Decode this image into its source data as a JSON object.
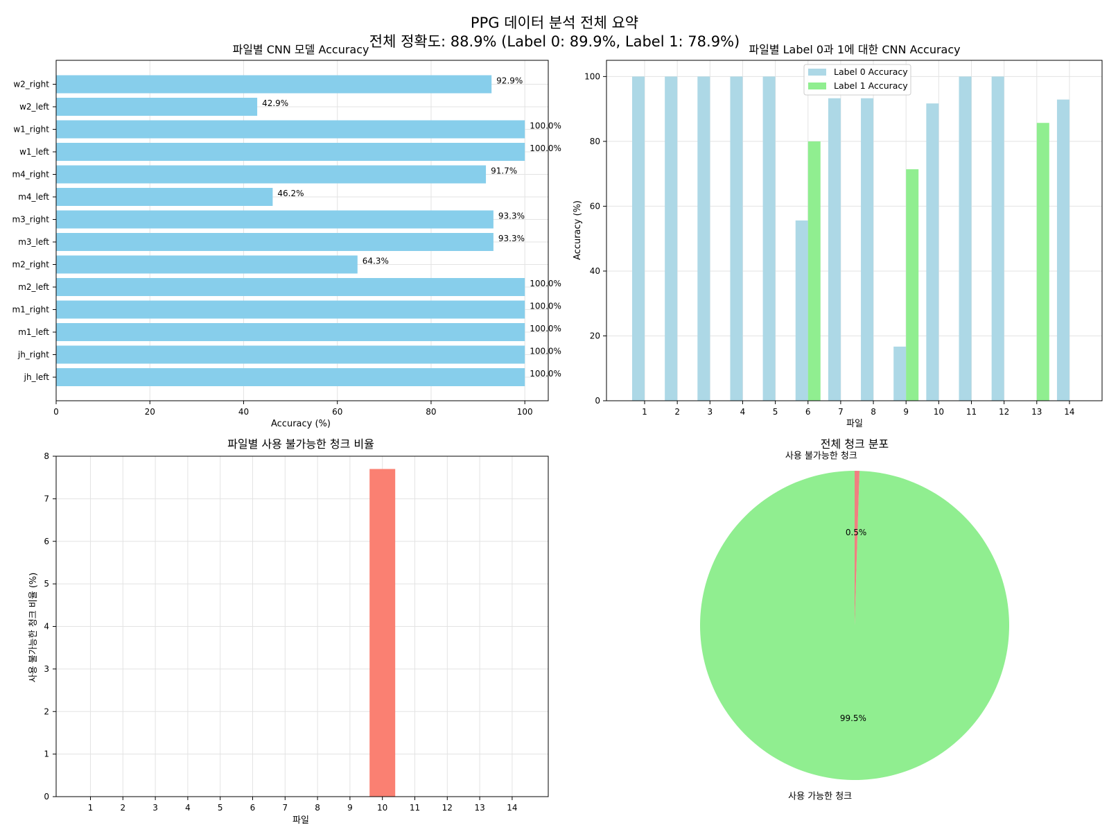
{
  "suptitle": {
    "line1": "PPG 데이터 분석 전체 요약",
    "line2": "전체 정확도: 88.9% (Label 0: 89.9%, Label 1: 78.9%)"
  },
  "chart_data": [
    {
      "type": "bar",
      "orientation": "horizontal",
      "title": "파일별 CNN 모델 Accuracy",
      "xlabel": "Accuracy (%)",
      "ylabel": "",
      "xlim": [
        0,
        105
      ],
      "xticks": [
        0,
        20,
        40,
        60,
        80,
        100
      ],
      "categories": [
        "jh_left",
        "jh_right",
        "m1_left",
        "m1_right",
        "m2_left",
        "m2_right",
        "m3_left",
        "m3_right",
        "m4_left",
        "m4_right",
        "w1_left",
        "w1_right",
        "w2_left",
        "w2_right"
      ],
      "values": [
        100.0,
        100.0,
        100.0,
        100.0,
        100.0,
        64.3,
        93.3,
        93.3,
        46.2,
        91.7,
        100.0,
        100.0,
        42.9,
        92.9
      ],
      "value_labels": [
        "100.0%",
        "100.0%",
        "100.0%",
        "100.0%",
        "100.0%",
        "64.3%",
        "93.3%",
        "93.3%",
        "46.2%",
        "91.7%",
        "100.0%",
        "100.0%",
        "42.9%",
        "92.9%"
      ],
      "color": "#87ceeb",
      "grid": true
    },
    {
      "type": "bar",
      "title": "파일별 Label 0과 1에 대한 CNN Accuracy",
      "xlabel": "파일",
      "ylabel": "Accuracy (%)",
      "ylim": [
        0,
        105
      ],
      "yticks": [
        0,
        20,
        40,
        60,
        80,
        100
      ],
      "categories": [
        "1",
        "2",
        "3",
        "4",
        "5",
        "6",
        "7",
        "8",
        "9",
        "10",
        "11",
        "12",
        "13",
        "14"
      ],
      "series": [
        {
          "name": "Label 0 Accuracy",
          "color": "#add8e6",
          "values": [
            100,
            100,
            100,
            100,
            100,
            55.6,
            93.3,
            93.3,
            16.7,
            91.7,
            100,
            100,
            0,
            92.9
          ]
        },
        {
          "name": "Label 1 Accuracy",
          "color": "#90ee90",
          "values": [
            0,
            0,
            0,
            0,
            0,
            80.0,
            0,
            0,
            71.4,
            0,
            0,
            0,
            85.7,
            0
          ]
        }
      ],
      "legend": "top-center",
      "grid": true
    },
    {
      "type": "bar",
      "title": "파일별 사용 불가능한 청크 비율",
      "xlabel": "파일",
      "ylabel": "사용 불가능한 청크 비율 (%)",
      "ylim": [
        0,
        8
      ],
      "yticks": [
        0,
        1,
        2,
        3,
        4,
        5,
        6,
        7,
        8
      ],
      "categories": [
        "1",
        "2",
        "3",
        "4",
        "5",
        "6",
        "7",
        "8",
        "9",
        "10",
        "11",
        "12",
        "13",
        "14"
      ],
      "values": [
        0,
        0,
        0,
        0,
        0,
        0,
        0,
        0,
        0,
        7.7,
        0,
        0,
        0,
        0
      ],
      "color": "#fa8072",
      "grid": true
    },
    {
      "type": "pie",
      "title": "전체 청크 분포",
      "slices": [
        {
          "label": "사용 가능한 청크",
          "value": 99.5,
          "pct_label": "99.5%",
          "color": "#90ee90"
        },
        {
          "label": "사용 불가능한 청크",
          "value": 0.5,
          "pct_label": "0.5%",
          "color": "#f08080"
        }
      ]
    }
  ]
}
